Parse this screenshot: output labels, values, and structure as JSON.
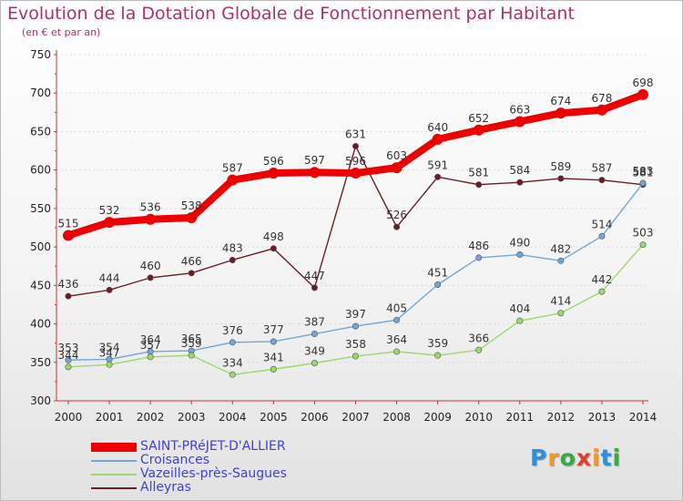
{
  "header": {
    "title": "Evolution de la Dotation Globale de Fonctionnement par Habitant",
    "subtitle": "(en € et par an)"
  },
  "chart_data": {
    "type": "line",
    "title": "Evolution de la Dotation Globale de Fonctionnement par Habitant",
    "subtitle": "(en € et par an)",
    "xlabel": "",
    "ylabel": "",
    "ylim": [
      300,
      750
    ],
    "yticks": [
      300,
      350,
      400,
      450,
      500,
      550,
      600,
      650,
      700,
      750
    ],
    "categories": [
      "2000",
      "2001",
      "2002",
      "2003",
      "2004",
      "2005",
      "2006",
      "2007",
      "2008",
      "2009",
      "2010",
      "2011",
      "2012",
      "2013",
      "2014"
    ],
    "series": [
      {
        "name": "Alleyras",
        "color": "#6b1d24",
        "values": [
          436,
          444,
          460,
          466,
          483,
          498,
          447,
          631,
          526,
          591,
          581,
          584,
          589,
          587,
          581
        ]
      },
      {
        "name": "Croisances",
        "color": "#6fa8d8",
        "values": [
          353,
          354,
          364,
          365,
          376,
          377,
          387,
          397,
          405,
          451,
          486,
          490,
          482,
          514,
          583
        ]
      },
      {
        "name": "Vazeilles-près-Saugues",
        "color": "#9bd96b",
        "values": [
          344,
          347,
          357,
          359,
          334,
          341,
          349,
          358,
          364,
          359,
          366,
          404,
          414,
          442,
          503
        ]
      },
      {
        "name": "SAINT-PRéJET-D'ALLIER",
        "color": "#ee0000",
        "values": [
          515,
          532,
          536,
          538,
          587,
          596,
          597,
          596,
          603,
          640,
          652,
          663,
          674,
          678,
          698
        ]
      }
    ],
    "legend": [
      {
        "name": "SAINT-PRéJET-D'ALLIER",
        "color": "#ee0000"
      },
      {
        "name": "Croisances",
        "color": "#6fa8d8"
      },
      {
        "name": "Vazeilles-près-Saugues",
        "color": "#9bd96b"
      },
      {
        "name": "Alleyras",
        "color": "#6b1d24"
      }
    ],
    "legend_position": "bottom-left",
    "grid": "horizontal"
  },
  "branding": {
    "logo": [
      "P",
      "r",
      "o",
      "x",
      "i",
      "t",
      "i"
    ],
    "logo_colors": [
      "#2f8fd8",
      "#f39a1e",
      "#3aa845",
      "#e23c2a",
      "#f39a1e",
      "#2f8fd8",
      "#3aa845"
    ]
  }
}
